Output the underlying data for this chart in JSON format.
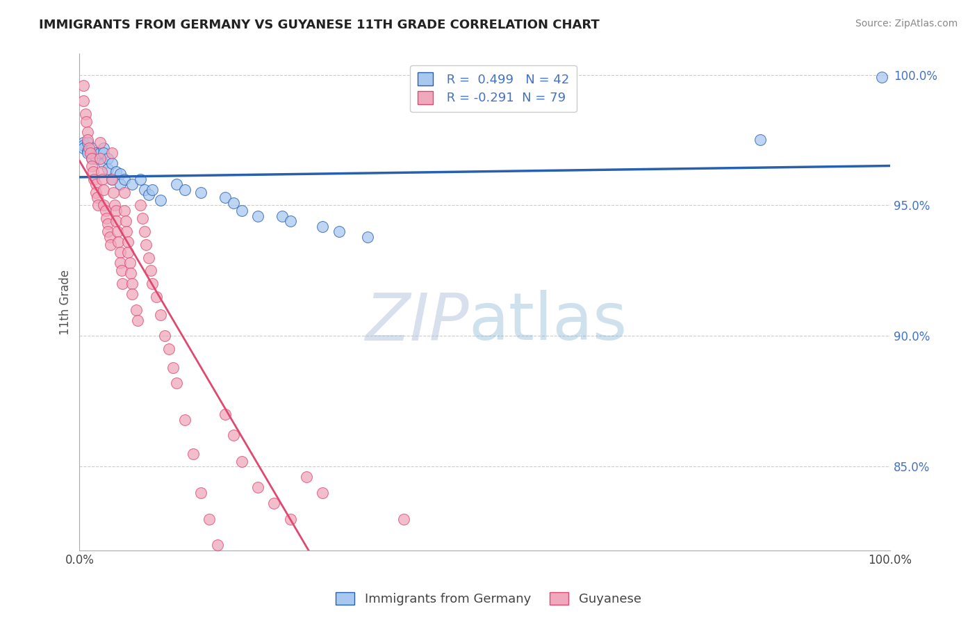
{
  "title": "IMMIGRANTS FROM GERMANY VS GUYANESE 11TH GRADE CORRELATION CHART",
  "source": "Source: ZipAtlas.com",
  "ylabel": "11th Grade",
  "watermark_zip": "ZIP",
  "watermark_atlas": "atlas",
  "legend_blue_r": "R =  0.499",
  "legend_blue_n": "N = 42",
  "legend_pink_r": "R = -0.291",
  "legend_pink_n": "N = 79",
  "blue_color": "#A8C8F0",
  "pink_color": "#F0A8BC",
  "trend_blue_color": "#2860B0",
  "trend_pink_color": "#E04870",
  "legend_label_blue": "Immigrants from Germany",
  "legend_label_pink": "Guyanese",
  "ytick_labels": [
    "100.0%",
    "95.0%",
    "90.0%",
    "85.0%"
  ],
  "ytick_values": [
    1.0,
    0.95,
    0.9,
    0.85
  ],
  "xmin": 0.0,
  "xmax": 1.0,
  "ymin": 0.818,
  "ymax": 1.008,
  "blue_x": [
    0.005,
    0.005,
    0.005,
    0.01,
    0.01,
    0.01,
    0.015,
    0.015,
    0.02,
    0.02,
    0.025,
    0.03,
    0.03,
    0.03,
    0.035,
    0.035,
    0.04,
    0.04,
    0.045,
    0.05,
    0.05,
    0.055,
    0.065,
    0.075,
    0.08,
    0.085,
    0.09,
    0.1,
    0.12,
    0.13,
    0.15,
    0.18,
    0.19,
    0.2,
    0.22,
    0.25,
    0.26,
    0.3,
    0.32,
    0.355,
    0.84,
    0.99
  ],
  "blue_y": [
    0.974,
    0.973,
    0.972,
    0.974,
    0.971,
    0.97,
    0.972,
    0.968,
    0.97,
    0.968,
    0.97,
    0.972,
    0.97,
    0.966,
    0.968,
    0.964,
    0.966,
    0.96,
    0.963,
    0.962,
    0.958,
    0.96,
    0.958,
    0.96,
    0.956,
    0.954,
    0.956,
    0.952,
    0.958,
    0.956,
    0.955,
    0.953,
    0.951,
    0.948,
    0.946,
    0.946,
    0.944,
    0.942,
    0.94,
    0.938,
    0.975,
    0.999
  ],
  "pink_x": [
    0.005,
    0.005,
    0.007,
    0.008,
    0.01,
    0.01,
    0.012,
    0.013,
    0.015,
    0.015,
    0.017,
    0.018,
    0.02,
    0.02,
    0.022,
    0.023,
    0.025,
    0.025,
    0.027,
    0.028,
    0.03,
    0.03,
    0.032,
    0.033,
    0.035,
    0.035,
    0.037,
    0.038,
    0.04,
    0.04,
    0.042,
    0.043,
    0.045,
    0.045,
    0.047,
    0.048,
    0.05,
    0.05,
    0.052,
    0.053,
    0.055,
    0.055,
    0.057,
    0.058,
    0.06,
    0.06,
    0.062,
    0.063,
    0.065,
    0.065,
    0.07,
    0.072,
    0.075,
    0.078,
    0.08,
    0.082,
    0.085,
    0.088,
    0.09,
    0.095,
    0.1,
    0.105,
    0.11,
    0.115,
    0.12,
    0.13,
    0.14,
    0.15,
    0.16,
    0.17,
    0.18,
    0.19,
    0.2,
    0.22,
    0.24,
    0.26,
    0.28,
    0.3,
    0.4
  ],
  "pink_y": [
    0.996,
    0.99,
    0.985,
    0.982,
    0.978,
    0.975,
    0.972,
    0.97,
    0.968,
    0.965,
    0.963,
    0.96,
    0.958,
    0.955,
    0.953,
    0.95,
    0.974,
    0.968,
    0.963,
    0.96,
    0.956,
    0.95,
    0.948,
    0.945,
    0.943,
    0.94,
    0.938,
    0.935,
    0.97,
    0.96,
    0.955,
    0.95,
    0.948,
    0.944,
    0.94,
    0.936,
    0.932,
    0.928,
    0.925,
    0.92,
    0.955,
    0.948,
    0.944,
    0.94,
    0.936,
    0.932,
    0.928,
    0.924,
    0.92,
    0.916,
    0.91,
    0.906,
    0.95,
    0.945,
    0.94,
    0.935,
    0.93,
    0.925,
    0.92,
    0.915,
    0.908,
    0.9,
    0.895,
    0.888,
    0.882,
    0.868,
    0.855,
    0.84,
    0.83,
    0.82,
    0.87,
    0.862,
    0.852,
    0.842,
    0.836,
    0.83,
    0.846,
    0.84,
    0.83
  ]
}
